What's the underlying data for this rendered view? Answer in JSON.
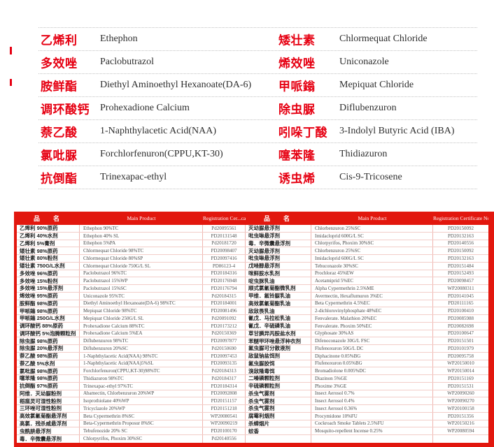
{
  "colors": {
    "accent_red": "#e60012",
    "table_red": "#e2170e",
    "hairline_vertical": "#f0b6b0",
    "hairline_horizontal": "#f3cdc8"
  },
  "top_list": {
    "rows": [
      {
        "cn1": "乙烯利",
        "en1": "Ethephon",
        "cn2": "矮壮素",
        "en2": "Chlormequat Chloride"
      },
      {
        "cn1": "多效唑",
        "en1": "Paclobutrazol",
        "cn2": "烯效唑",
        "en2": "Uniconazole"
      },
      {
        "cn1": "胺鲜酯",
        "en1": "Diethyl Aminoethyl Hexanoate(DA-6)",
        "cn2": "甲哌鎓",
        "en2": "Mepiquat Chloride"
      },
      {
        "cn1": "调环酸钙",
        "en1": "Prohexadione Calcium",
        "cn2": "除虫脲",
        "en2": "Diflubenzuron"
      },
      {
        "cn1": "萘乙酸",
        "en1": "1-Naphthylacetic Acid(NAA)",
        "cn2": "吲哚丁酸",
        "en2": "3-Indolyl Butyric Acid (IBA)"
      },
      {
        "cn1": "氯吡脲",
        "en1": "Forchlorfenuron(CPPU,KT-30)",
        "cn2": "噻苯隆",
        "en2": "Thidiazuron"
      },
      {
        "cn1": "抗倒酯",
        "en1": "Trinexapac-ethyl",
        "cn2": "诱虫烯",
        "en2": "Cis-9-Tricosene"
      }
    ]
  },
  "table": {
    "header": {
      "name": "品　名",
      "main_product": "Main Product",
      "reg_left": "Registration Cer...cate No",
      "reg_right": "Registration Certificate No."
    },
    "rows": [
      {
        "n1": "乙烯利 90%原药",
        "p1": "Ethephon 90%TC",
        "r1": "Pd20095561",
        "n2": "灭幼脲悬浮剂",
        "p2": "Chlorbenzuron 25%SC",
        "r2": "PD20150092"
      },
      {
        "n1": "乙烯利 40%水剂",
        "p1": "Ethephon 40% SL",
        "r1": "PD20131548",
        "n2": "吡虫啉悬浮剂",
        "p2": "Imidacloprid 600G/L SC",
        "r2": "PD20132163"
      },
      {
        "n1": "乙烯利 5%膏剂",
        "p1": "Ethephon 5%PA",
        "r1": "Pd20181720",
        "n2": "毒．辛微囊悬浮剂",
        "p2": "Chlorpyrifos, Phoxim 30%SC",
        "r2": "PD20140556"
      },
      {
        "n1": "矮壮素 98%原药",
        "p1": "Chlormequat Chloride 98%TC",
        "r1": "PD20098407",
        "n2": "灭幼脲悬浮剂",
        "p2": "Chlorbenzuron 25%SC",
        "r2": "PD20150092"
      },
      {
        "n1": "矮壮素 80%粉剂",
        "p1": "Chlormequat Chloride 80%SP",
        "r1": "PD20097416",
        "n2": "吡虫啉悬浮剂",
        "p2": "Imidacloprid 600G/L SC",
        "r2": "PD20132163"
      },
      {
        "n1": "矮壮素 750G/L水剂",
        "p1": "Chlormequat Chloride 750G/L SL",
        "r1": "PD86123-4",
        "n2": "戊唑醇悬浮剂",
        "p2": "Tebuconazole 30%SC",
        "r2": "PD20151484"
      },
      {
        "n1": "多效唑 96%原药",
        "p1": "Paclobutrazol 96%TC",
        "r1": "PD20184316",
        "n2": "咪鲜胺水乳剂",
        "p2": "Prochloraz 45%EW",
        "r2": "PD20152493"
      },
      {
        "n1": "多效唑 15%粉剂",
        "p1": "Paclobutrazol 15%WP",
        "r1": "PD20176948",
        "n2": "啶虫脒乳油",
        "p2": "Acetamiprid 5%EC",
        "r2": "PD20098457"
      },
      {
        "n1": "多效唑 15%悬浮剂",
        "p1": "Paclobutrazol 15%SC",
        "r1": "PD20176794",
        "n2": "顺式氯氰菊酯微乳剂",
        "p2": "Alpha Cypermethrin 2.5%ME",
        "r2": "WP20080311"
      },
      {
        "n1": "烯效唑 95%原药",
        "p1": "Uniconazole 95%TC",
        "r1": "Pd20184315",
        "n2": "甲维．氟铃脲乳油",
        "p2": "Avermectin, Hexaflumuron 3%EC",
        "r2": "PD20141045"
      },
      {
        "n1": "胺鲜酯 98%原药",
        "p1": "Diethyl Aminoethyl Hexanoate(DA-6) 98%TC",
        "r1": "PD20184001",
        "n2": "高效氯氰菊酯乳油",
        "p2": "Beta Cypermethrin 4.5%EC",
        "r2": "PD20111165"
      },
      {
        "n1": "甲哌鎓 98%原药",
        "p1": "Mepiquat Chloride 98%TC",
        "r1": "PD20081496",
        "n2": "敌敌畏乳油",
        "p2": "2-dichlorovinylphosphate 48%EC",
        "r2": "PD20100410"
      },
      {
        "n1": "甲哌鎓 250G/L水剂",
        "p1": "Mepiquat Chloride 250G/L SL",
        "r1": "Pd20091092",
        "n2": "氰戊．马拉松乳油",
        "p2": "Fenvalerate. Malathion 20%EC",
        "r2": "PD20085988"
      },
      {
        "n1": "调环酸钙 88%原药",
        "p1": "Prohexadione Calcium 88%TC",
        "r1": "PD20173212",
        "n2": "氰戊．辛硫磷乳油",
        "p2": "Fenvalerate. Phoxim 50%EC",
        "r2": "PD20082698"
      },
      {
        "n1": "调环酸钙 5%泡腾颗粒剂",
        "p1": "Prohexadione Calcium 5%EA",
        "r1": "Pd20150369",
        "n2": "草甘膦异丙胺盐水剂",
        "p2": "Glyphosate 30%AS",
        "r2": "PD20100647"
      },
      {
        "n1": "除虫脲 98%原药",
        "p1": "Diflubenzuron 98%TC",
        "r1": "PD20097877",
        "n2": "苯醚甲环唑悬浮种衣剂",
        "p2": "Difenoconazole 30G/L FSC",
        "r2": "PD20151501"
      },
      {
        "n1": "除虫脲 20%悬浮剂",
        "p1": "Diflubenzuron 20%SC",
        "r1": "Pd20150690",
        "n2": "氟虫脲可分散液剂",
        "p2": "Flufenoxuron 50G/L DC",
        "r2": "PD20101979"
      },
      {
        "n1": "萘乙酸 98%原药",
        "p1": "1-Naphthylacetic Acid(NAA) 98%TC",
        "r1": "PD20097453",
        "n2": "敌鼠钠盐饵剂",
        "p2": "Diphacinone 0.05%BG",
        "r2": "PD20095758"
      },
      {
        "n1": "萘乙酸 5%水剂",
        "p1": "1-Naphthylacetic Acid(NAA)5%SL",
        "r1": "PD20093135",
        "n2": "氟虫脲胶饵",
        "p2": "Flufenoxuron 0.05%BG",
        "r2": "WP20150010"
      },
      {
        "n1": "氯吡脲 98%原药",
        "p1": "Forchlorfenuron(CPPU,KT-30)98%TC",
        "r1": "Pd20184313",
        "n2": "溴敌隆毒饵",
        "p2": "Bromadiolone 0.005%DC",
        "r2": "WP20150014"
      },
      {
        "n1": "噻苯隆 98%原药",
        "p1": "Thidiazuron 98%TC",
        "r1": "Pd20184317",
        "n2": "二嗪磷颗粒剂",
        "p2": "Diazinon 5%GE",
        "r2": "PD20151169"
      },
      {
        "n1": "抗倒酯 97%原药",
        "p1": "Trinexapac-ethyl 97%TC",
        "r1": "PD20184314",
        "n2": "辛硫磷颗粒剂",
        "p2": "Phoxime 3%GE",
        "r2": "PD20151531"
      },
      {
        "n1": "阿维．灭幼脲粉剂",
        "p1": "Abamectin, Chlorbenzuron 20%WP",
        "r1": "PD20092808",
        "n2": "杀虫气雾剂",
        "p2": "Insect Aerosol 0.7%",
        "r2": "WP20090260"
      },
      {
        "n1": "稻瘟灵可湿性粉剂",
        "p1": "Isoprothiolane 40%WP",
        "r1": "PD20151157",
        "n2": "杀虫气雾剂",
        "p2": "Insect Aerosol 0.4%",
        "r2": "WP20090270"
      },
      {
        "n1": "三环唑可湿性粉剂",
        "p1": "Tricyclazole 20%WP",
        "r1": "PD20151218",
        "n2": "杀虫气雾剂",
        "p2": "Insect Aerosol 0.36%",
        "r2": "WP20100158"
      },
      {
        "n1": "高效氯氰菊酯悬浮剂",
        "p1": "Beta Cypermethrin 8%SC",
        "r1": "WP20080541",
        "n2": "腐霉利烟剂",
        "p2": "Procymidone 10%FU",
        "r2": "PD20151356"
      },
      {
        "n1": "高氯．残杀威悬浮剂",
        "p1": "Beta-Cypermethrin Proposur 8%SC",
        "r1": "WP20090219",
        "n2": "杀蟑烟片",
        "p2": "Cockroach Smoke Tablets 2.5%FU",
        "r2": "WP20150216"
      },
      {
        "n1": "虫酰肼悬浮剂",
        "p1": "Tebufenozide 20% SC",
        "r1": "PD20100170",
        "n2": "蚊香",
        "p2": "Mosquito-repellent Incense 0.25%",
        "r2": "WP20080594"
      },
      {
        "n1": "毒．辛微囊悬浮剂",
        "p1": "Chlorpyrifos, Phoxim 30%SC",
        "r1": "Pd20140556",
        "n2": "",
        "p2": "",
        "r2": ""
      }
    ]
  }
}
